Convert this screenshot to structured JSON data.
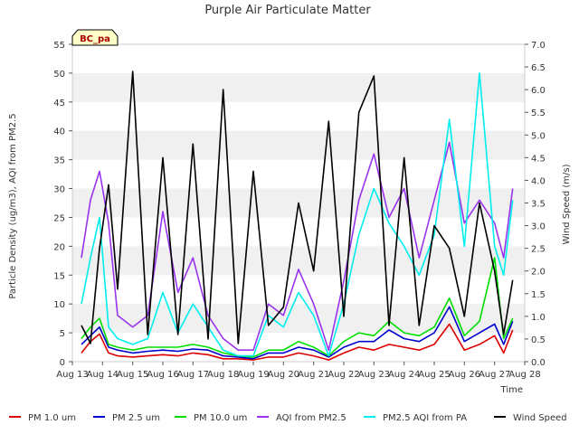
{
  "chart_data": {
    "type": "line",
    "title": "Purple Air Particulate Matter",
    "site_label": "BC_pa",
    "xlabel": "Time",
    "ylabel_left": "Particle Density (ug/m3), AQI from PM2.5",
    "ylabel_right": "Wind Speed (m/s)",
    "x_ticks": [
      "Aug 13",
      "Aug 14",
      "Aug 15",
      "Aug 16",
      "Aug 17",
      "Aug 18",
      "Aug 19",
      "Aug 20",
      "Aug 21",
      "Aug 22",
      "Aug 23",
      "Aug 24",
      "Aug 25",
      "Aug 26",
      "Aug 27",
      "Aug 28"
    ],
    "xlim": [
      0,
      15
    ],
    "ylim_left": [
      0,
      55
    ],
    "ylim_right": [
      0,
      7.0
    ],
    "y_ticks_left": [
      "0",
      "5",
      "10",
      "15",
      "20",
      "25",
      "30",
      "35",
      "40",
      "45",
      "50",
      "55"
    ],
    "y_ticks_right": [
      "0.0",
      "0.5",
      "1.0",
      "1.5",
      "2.0",
      "2.5",
      "3.0",
      "3.5",
      "4.0",
      "4.5",
      "5.0",
      "5.5",
      "6.0",
      "6.5",
      "7.0"
    ],
    "grid": "horizontal bands",
    "legend_position": "bottom",
    "series": [
      {
        "name": "PM 1.0 um",
        "color": "#dd0000",
        "axis": "left",
        "x": [
          0.3,
          0.6,
          0.9,
          1.2,
          1.5,
          2.0,
          2.5,
          3.0,
          3.5,
          4.0,
          4.5,
          5.0,
          5.5,
          6.0,
          6.5,
          7.0,
          7.5,
          8.0,
          8.5,
          9.0,
          9.5,
          10.0,
          10.5,
          11.0,
          11.5,
          12.0,
          12.5,
          13.0,
          13.5,
          14.0,
          14.3,
          14.6
        ],
        "values": [
          1.5,
          3.5,
          4.8,
          1.5,
          1.0,
          0.8,
          1.0,
          1.2,
          1.0,
          1.5,
          1.2,
          0.5,
          0.5,
          0.3,
          0.8,
          0.8,
          1.5,
          1.0,
          0.3,
          1.5,
          2.5,
          2.0,
          3.0,
          2.5,
          2.0,
          3.0,
          6.5,
          2.0,
          3.0,
          4.5,
          1.5,
          5.5
        ]
      },
      {
        "name": "PM 2.5 um",
        "color": "#0000cc",
        "axis": "left",
        "x": [
          0.3,
          0.6,
          0.9,
          1.2,
          1.5,
          2.0,
          2.5,
          3.0,
          3.5,
          4.0,
          4.5,
          5.0,
          5.5,
          6.0,
          6.5,
          7.0,
          7.5,
          8.0,
          8.5,
          9.0,
          9.5,
          10.0,
          10.5,
          11.0,
          11.5,
          12.0,
          12.5,
          13.0,
          13.5,
          14.0,
          14.3,
          14.6
        ],
        "values": [
          3.0,
          4.5,
          6.0,
          2.5,
          2.0,
          1.5,
          1.8,
          2.0,
          1.8,
          2.2,
          2.0,
          1.0,
          0.8,
          0.5,
          1.5,
          1.5,
          2.5,
          2.0,
          0.8,
          2.5,
          3.5,
          3.5,
          5.5,
          4.0,
          3.5,
          5.0,
          9.5,
          3.5,
          5.0,
          6.5,
          3.0,
          7.0
        ]
      },
      {
        "name": "PM 10.0 um",
        "color": "#00dd00",
        "axis": "left",
        "x": [
          0.3,
          0.6,
          0.9,
          1.2,
          1.5,
          2.0,
          2.5,
          3.0,
          3.5,
          4.0,
          4.5,
          5.0,
          5.5,
          6.0,
          6.5,
          7.0,
          7.5,
          8.0,
          8.5,
          9.0,
          9.5,
          10.0,
          10.5,
          11.0,
          11.5,
          12.0,
          12.5,
          13.0,
          13.5,
          14.0,
          14.3,
          14.6
        ],
        "values": [
          4.0,
          6.0,
          7.5,
          3.0,
          2.5,
          2.0,
          2.5,
          2.5,
          2.5,
          3.0,
          2.5,
          1.5,
          1.0,
          0.8,
          2.0,
          2.0,
          3.5,
          2.5,
          1.0,
          3.5,
          5.0,
          4.5,
          7.0,
          5.0,
          4.5,
          6.0,
          11.0,
          4.5,
          7.0,
          18.0,
          4.0,
          7.5
        ]
      },
      {
        "name": "AQI from PM2.5",
        "color": "#9933ee",
        "axis": "left",
        "x": [
          0.3,
          0.6,
          0.9,
          1.2,
          1.5,
          2.0,
          2.5,
          3.0,
          3.5,
          4.0,
          4.5,
          5.0,
          5.5,
          6.0,
          6.5,
          7.0,
          7.5,
          8.0,
          8.5,
          9.0,
          9.5,
          10.0,
          10.5,
          11.0,
          11.5,
          12.0,
          12.5,
          13.0,
          13.5,
          14.0,
          14.3,
          14.6
        ],
        "values": [
          18,
          28,
          33,
          24,
          8,
          6,
          8,
          26,
          12,
          18,
          8,
          4,
          2,
          2,
          10,
          8,
          16,
          10,
          2,
          14,
          28,
          36,
          25,
          30,
          18,
          28,
          38,
          24,
          28,
          24,
          18,
          30
        ]
      },
      {
        "name": "PM2.5 AQI from PA",
        "color": "#00eeee",
        "axis": "left",
        "x": [
          0.3,
          0.6,
          0.9,
          1.2,
          1.5,
          2.0,
          2.5,
          3.0,
          3.5,
          4.0,
          4.5,
          5.0,
          5.5,
          6.0,
          6.5,
          7.0,
          7.5,
          8.0,
          8.5,
          9.0,
          9.5,
          10.0,
          10.5,
          11.0,
          11.5,
          12.0,
          12.5,
          13.0,
          13.5,
          14.0,
          14.3,
          14.6
        ],
        "values": [
          10,
          18,
          25,
          6,
          4,
          3,
          4,
          12,
          5,
          10,
          6,
          2,
          1,
          1,
          8,
          6,
          12,
          8,
          1,
          10,
          22,
          30,
          24,
          20,
          15,
          22,
          42,
          20,
          50,
          20,
          15,
          28
        ]
      },
      {
        "name": "Wind Speed",
        "color": "#000000",
        "axis": "right",
        "x": [
          0.3,
          0.6,
          0.9,
          1.2,
          1.5,
          2.0,
          2.5,
          3.0,
          3.5,
          4.0,
          4.5,
          5.0,
          5.5,
          6.0,
          6.5,
          7.0,
          7.5,
          8.0,
          8.5,
          9.0,
          9.5,
          10.0,
          10.5,
          11.0,
          11.5,
          12.0,
          12.5,
          13.0,
          13.5,
          14.0,
          14.3,
          14.6
        ],
        "values": [
          0.8,
          0.4,
          2.5,
          3.9,
          1.6,
          6.4,
          0.6,
          4.5,
          0.6,
          4.8,
          0.5,
          6.0,
          0.4,
          4.2,
          0.8,
          1.2,
          3.5,
          2.0,
          5.3,
          1.0,
          5.5,
          6.3,
          0.8,
          4.5,
          0.8,
          3.0,
          2.5,
          1.0,
          3.5,
          2.0,
          0.6,
          1.8
        ]
      }
    ]
  }
}
